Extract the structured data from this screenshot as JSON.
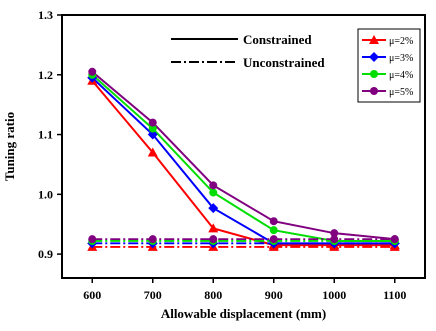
{
  "chart_data": {
    "type": "line",
    "title": "",
    "xlabel": "Allowable displacement (mm)",
    "ylabel": "Tuning ratio",
    "x": [
      600,
      700,
      800,
      900,
      1000,
      1100
    ],
    "xticks": [
      "600",
      "700",
      "800",
      "900",
      "1000",
      "1100"
    ],
    "yticks": [
      "0.9",
      "1.0",
      "1.1",
      "1.2",
      "1.3"
    ],
    "xlim": [
      550,
      1150
    ],
    "ylim": [
      0.86,
      1.3
    ],
    "grid": false,
    "line_styles": [
      {
        "name": "Constrained",
        "dash": "solid"
      },
      {
        "name": "Unconstrained",
        "dash": "dash-dot"
      }
    ],
    "legend_position": "top-right",
    "series": [
      {
        "name": "μ=2%",
        "color": "#ff0000",
        "marker": "triangle",
        "constrained": [
          1.19,
          1.07,
          0.943,
          0.915,
          0.915,
          0.915
        ],
        "unconstrained": [
          0.912,
          0.912,
          0.912,
          0.912,
          0.912,
          0.912
        ]
      },
      {
        "name": "μ=3%",
        "color": "#0000ff",
        "marker": "diamond",
        "constrained": [
          1.195,
          1.1,
          0.977,
          0.918,
          0.918,
          0.918
        ],
        "unconstrained": [
          0.918,
          0.918,
          0.918,
          0.918,
          0.918,
          0.918
        ]
      },
      {
        "name": "μ=4%",
        "color": "#00dd00",
        "marker": "circle",
        "constrained": [
          1.2,
          1.11,
          1.003,
          0.94,
          0.922,
          0.922
        ],
        "unconstrained": [
          0.922,
          0.922,
          0.922,
          0.922,
          0.922,
          0.922
        ]
      },
      {
        "name": "μ=5%",
        "color": "#800080",
        "marker": "circle",
        "constrained": [
          1.205,
          1.12,
          1.015,
          0.955,
          0.935,
          0.925
        ],
        "unconstrained": [
          0.925,
          0.925,
          0.925,
          0.925,
          0.925,
          0.925
        ]
      }
    ]
  }
}
